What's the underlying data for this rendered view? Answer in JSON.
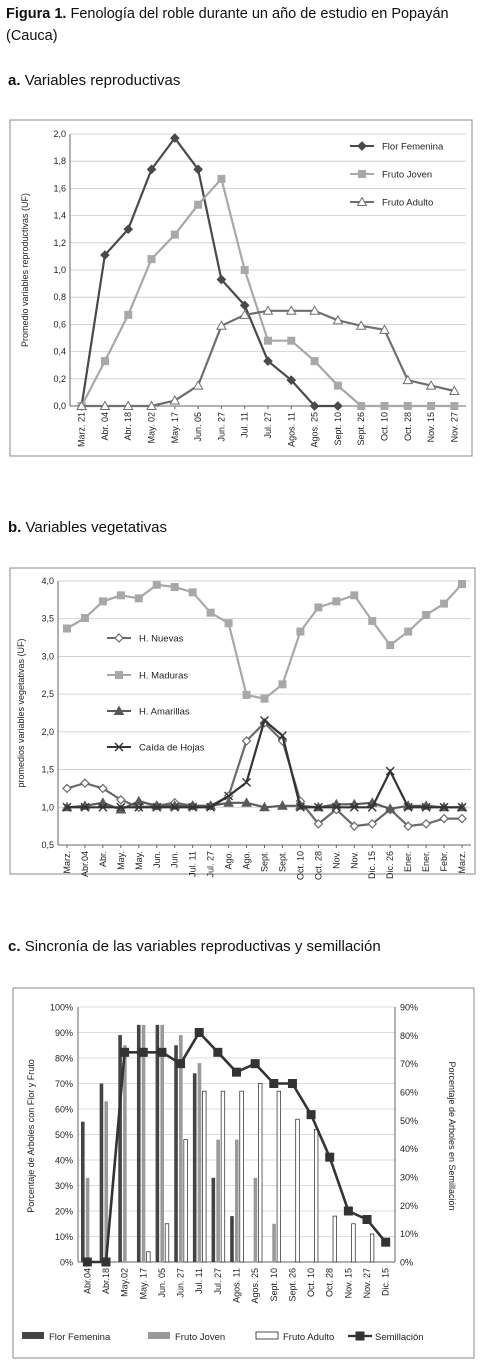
{
  "figure": {
    "label": "Figura 1.",
    "title": "Fenología del roble durante un año de estudio en Popayán (Cauca)"
  },
  "chart_data": [
    {
      "id": "a",
      "section_letter": "a.",
      "section_title": "Variables reproductivas",
      "type": "line",
      "ylabel": "Promedio variables reproductivas (UF)",
      "ylim": [
        0,
        2.0
      ],
      "yticks": [
        "0,0",
        "0,2",
        "0,4",
        "0,6",
        "0,8",
        "1,0",
        "1,2",
        "1,4",
        "1,6",
        "1,8",
        "2,0"
      ],
      "categories": [
        "Marz. 21",
        "Abr. 04",
        "Abr. 18",
        "May. 02",
        "May. 17",
        "Jun. 05",
        "Jun. 27",
        "Jul. 11",
        "Jul. 27",
        "Agos. 11",
        "Agos. 25",
        "Sept. 10",
        "Sept. 26",
        "Oct. 10",
        "Oct. 28",
        "Nov. 15",
        "Nov. 27"
      ],
      "legend_position": "top-right",
      "series": [
        {
          "name": "Flor Femenina",
          "color": "#4a4a4a",
          "marker": "diamond",
          "values": [
            0,
            1.11,
            1.3,
            1.74,
            1.97,
            1.74,
            0.93,
            0.74,
            0.33,
            0.19,
            0,
            0,
            null,
            null,
            null,
            null,
            null
          ]
        },
        {
          "name": "Fruto Joven",
          "color": "#a8a8a8",
          "marker": "square",
          "values": [
            0,
            0.33,
            0.67,
            1.08,
            1.26,
            1.48,
            1.67,
            1.0,
            0.48,
            0.48,
            0.33,
            0.15,
            0,
            0,
            0,
            0,
            0
          ]
        },
        {
          "name": "Fruto Adulto",
          "color": "#6f6f6f",
          "marker": "triangle-open",
          "values": [
            0,
            0,
            0,
            0,
            0.04,
            0.15,
            0.59,
            0.67,
            0.7,
            0.7,
            0.7,
            0.63,
            0.59,
            0.56,
            0.19,
            0.15,
            0.11
          ]
        }
      ]
    },
    {
      "id": "b",
      "section_letter": "b.",
      "section_title": "Variables vegetativas",
      "type": "line",
      "ylabel": "promedios variables vegetativas (UF)",
      "ylim": [
        0.5,
        4.0
      ],
      "yticks": [
        "0,5",
        "1,0",
        "1,5",
        "2,0",
        "2,5",
        "3,0",
        "3,5",
        "4,0"
      ],
      "categories": [
        "Marz.",
        "Abr.04",
        "Abr.",
        "May.",
        "May.",
        "Jun.",
        "Jun.",
        "Jul. 11",
        "Jul. 27",
        "Ago.",
        "Ago.",
        "Sept.",
        "Sept.",
        "Oct. 10",
        "Oct. 28",
        "Nov.",
        "Nov.",
        "Dic. 15",
        "Dic. 26",
        "Ener.",
        "Ener.",
        "Febr.",
        "Marz."
      ],
      "legend_position": "left",
      "series": [
        {
          "name": "H. Nuevas",
          "color": "#6a6a6a",
          "marker": "diamond-open",
          "values": [
            1.25,
            1.32,
            1.25,
            1.1,
            1.0,
            1.02,
            1.06,
            1.02,
            1.02,
            1.15,
            1.88,
            2.12,
            1.88,
            1.08,
            0.78,
            0.97,
            0.75,
            0.78,
            0.97,
            0.75,
            0.78,
            0.85,
            0.85
          ]
        },
        {
          "name": "H. Maduras",
          "color": "#a8a8a8",
          "marker": "square",
          "values": [
            3.37,
            3.51,
            3.73,
            3.81,
            3.77,
            3.95,
            3.92,
            3.85,
            3.58,
            3.44,
            2.49,
            2.44,
            2.63,
            3.33,
            3.65,
            3.73,
            3.81,
            3.47,
            3.15,
            3.33,
            3.55,
            3.7,
            3.96
          ]
        },
        {
          "name": "H. Amarillas",
          "color": "#5a5a5a",
          "marker": "triangle",
          "values": [
            1.0,
            1.02,
            1.06,
            0.97,
            1.08,
            1.02,
            1.02,
            1.02,
            1.02,
            1.06,
            1.06,
            1.0,
            1.02,
            1.02,
            1.0,
            1.04,
            1.04,
            1.06,
            0.98,
            1.02,
            1.02,
            1.0,
            1.0
          ]
        },
        {
          "name": "Caída de Hojas",
          "color": "#333333",
          "marker": "x",
          "values": [
            1.0,
            1.0,
            1.0,
            1.0,
            1.0,
            1.0,
            1.0,
            1.0,
            1.0,
            1.15,
            1.33,
            2.15,
            1.95,
            1.0,
            1.0,
            1.0,
            1.0,
            1.0,
            1.48,
            1.0,
            1.0,
            1.0,
            1.0
          ]
        }
      ]
    },
    {
      "id": "c",
      "section_letter": "c.",
      "section_title": "Sincronía de las variables reproductivas y semillación",
      "type": "bar",
      "ylabel": "Porcentaje de Arboles con Flor y Fruto",
      "y2label": "Porcentaje de Arboles en Semillación",
      "ylim": [
        0,
        100
      ],
      "y2lim": [
        0,
        90
      ],
      "yticks": [
        "0%",
        "10%",
        "20%",
        "30%",
        "40%",
        "50%",
        "60%",
        "70%",
        "80%",
        "90%",
        "100%"
      ],
      "y2ticks": [
        "0%",
        "10%",
        "20%",
        "30%",
        "40%",
        "50%",
        "60%",
        "70%",
        "80%",
        "90%"
      ],
      "categories": [
        "Abr.04",
        "Abr.18",
        "May.02",
        "May. 17",
        "Jun. 05",
        "Jun. 27",
        "Jul. 11",
        "Jul. 27",
        "Agos. 11",
        "Agos. 25",
        "Sept. 10",
        "Sept. 26",
        "Oct. 10",
        "Oct. 28",
        "Nov. 15",
        "Nov. 27",
        "Dic. 15"
      ],
      "legend_position": "bottom",
      "series": [
        {
          "name": "Flor Femenina",
          "color": "#444444",
          "kind": "bar",
          "values": [
            55,
            70,
            89,
            93,
            93,
            85,
            74,
            33,
            18,
            0,
            0,
            0,
            0,
            0,
            0,
            0,
            0
          ]
        },
        {
          "name": "Fruto Joven",
          "color": "#9a9a9a",
          "kind": "bar",
          "values": [
            33,
            63,
            85,
            93,
            93,
            89,
            78,
            48,
            48,
            33,
            15,
            0,
            0,
            0,
            0,
            0,
            0
          ]
        },
        {
          "name": "Fruto Adulto",
          "color": "#ffffff",
          "kind": "bar",
          "values": [
            0,
            0,
            0,
            4,
            15,
            48,
            67,
            67,
            67,
            70,
            67,
            56,
            52,
            18,
            15,
            11,
            0
          ]
        },
        {
          "name": "Semillación",
          "color": "#333333",
          "kind": "line",
          "axis": "right",
          "values": [
            0,
            0,
            74,
            74,
            74,
            70,
            81,
            74,
            67,
            70,
            63,
            63,
            52,
            37,
            18,
            15,
            7
          ]
        }
      ]
    }
  ]
}
